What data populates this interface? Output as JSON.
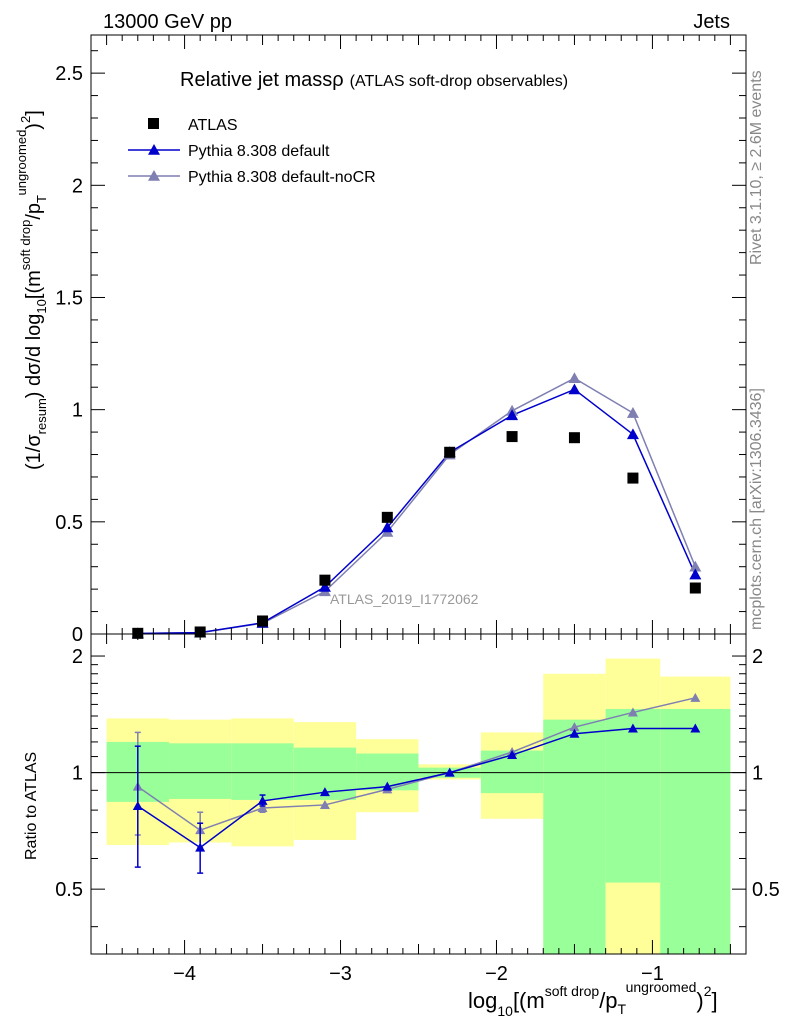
{
  "header": {
    "left": "13000 GeV pp",
    "right": "Jets"
  },
  "side_text": {
    "rivet": "Rivet 3.1.10, ≥ 2.6M events",
    "mcplots": "mcplots.cern.ch [arXiv:1306.3436]"
  },
  "plot_title": {
    "main": "Relative jet massρ",
    "sub": "(ATLAS soft-drop observables)"
  },
  "analysis_label": "ATLAS_2019_I1772062",
  "axes": {
    "main_ylabel": "(1/σresum) dσ/d log10[(msoft drop/pTungroomed)2]",
    "ratio_ylabel": "Ratio to ATLAS",
    "xlabel": "log10[(msoft drop/pTungroomed)2]",
    "main_ticks": [
      "0",
      "0.5",
      "1",
      "1.5",
      "2",
      "2.5"
    ],
    "ratio_ticks": [
      "0.5",
      "1",
      "2"
    ],
    "x_ticks": [
      "−4",
      "−3",
      "−2",
      "−1"
    ]
  },
  "legend": [
    {
      "name": "ATLAS",
      "color": "#000000",
      "marker": "square"
    },
    {
      "name": "Pythia 8.308 default",
      "color": "#0000cc",
      "marker": "triangle"
    },
    {
      "name": "Pythia 8.308 default-noCR",
      "color": "#7f7fb2",
      "marker": "triangle"
    }
  ],
  "chart_data": {
    "type": "line",
    "title": "Relative jet massρ (ATLAS soft-drop observables)",
    "xlabel": "log10[(m^soft drop/p_T^ungroomed)^2]",
    "ylabel": "(1/σ_resum) dσ/d log10[(m^soft drop/p_T^ungroomed)^2]",
    "xlim": [
      -4.6,
      -0.4
    ],
    "ylim": [
      0,
      2.67
    ],
    "ratio_ylim": [
      0.34,
      2.28
    ],
    "ratio_log": true,
    "bin_edges": [
      -4.5,
      -4.1,
      -3.7,
      -3.3,
      -2.9,
      -2.5,
      -2.1,
      -1.7,
      -1.3,
      -0.95,
      -0.5
    ],
    "x": [
      -4.3,
      -3.9,
      -3.5,
      -3.1,
      -2.7,
      -2.3,
      -1.9,
      -1.5,
      -1.125,
      -0.725
    ],
    "series": [
      {
        "name": "ATLAS",
        "values": [
          0.003,
          0.009,
          0.058,
          0.24,
          0.52,
          0.81,
          0.88,
          0.875,
          0.695,
          0.205
        ]
      },
      {
        "name": "Pythia 8.308 default",
        "values": [
          0.002,
          0.006,
          0.05,
          0.21,
          0.475,
          0.81,
          0.975,
          1.09,
          0.89,
          0.265
        ],
        "ratio": [
          0.82,
          0.64,
          0.845,
          0.89,
          0.92,
          1.0,
          1.11,
          1.26,
          1.3,
          1.3
        ],
        "ratio_err": [
          [
            0.57,
            1.17
          ],
          [
            0.55,
            0.74
          ],
          [
            0.82,
            0.875
          ],
          null,
          null,
          null,
          null,
          null,
          null,
          null
        ]
      },
      {
        "name": "Pythia 8.308 default-noCR",
        "values": [
          0.003,
          0.006,
          0.048,
          0.19,
          0.455,
          0.8,
          0.995,
          1.14,
          0.985,
          0.3
        ],
        "ratio": [
          0.92,
          0.71,
          0.81,
          0.825,
          0.905,
          1.0,
          1.13,
          1.31,
          1.43,
          1.56
        ],
        "ratio_err": [
          [
            0.69,
            1.27
          ],
          [
            0.64,
            0.79
          ],
          [
            0.79,
            0.83
          ],
          null,
          null,
          null,
          null,
          null,
          null,
          null
        ]
      }
    ],
    "uncertainty_bands": {
      "inner": [
        [
          0.84,
          1.2
        ],
        [
          0.855,
          1.19
        ],
        [
          0.85,
          1.19
        ],
        [
          0.85,
          1.16
        ],
        [
          0.9,
          1.12
        ],
        [
          0.97,
          1.03
        ],
        [
          0.885,
          1.14
        ],
        [
          0.34,
          1.37
        ],
        [
          0.52,
          1.46
        ],
        [
          0.34,
          1.46
        ]
      ],
      "outer": [
        [
          0.65,
          1.38
        ],
        [
          0.66,
          1.37
        ],
        [
          0.645,
          1.38
        ],
        [
          0.67,
          1.35
        ],
        [
          0.79,
          1.22
        ],
        [
          0.96,
          1.05
        ],
        [
          0.76,
          1.27
        ],
        [
          0.34,
          1.8
        ],
        [
          0.34,
          1.97
        ],
        [
          0.34,
          1.77
        ]
      ],
      "inner_color": "#99ff99",
      "outer_color": "#ffff99"
    }
  }
}
